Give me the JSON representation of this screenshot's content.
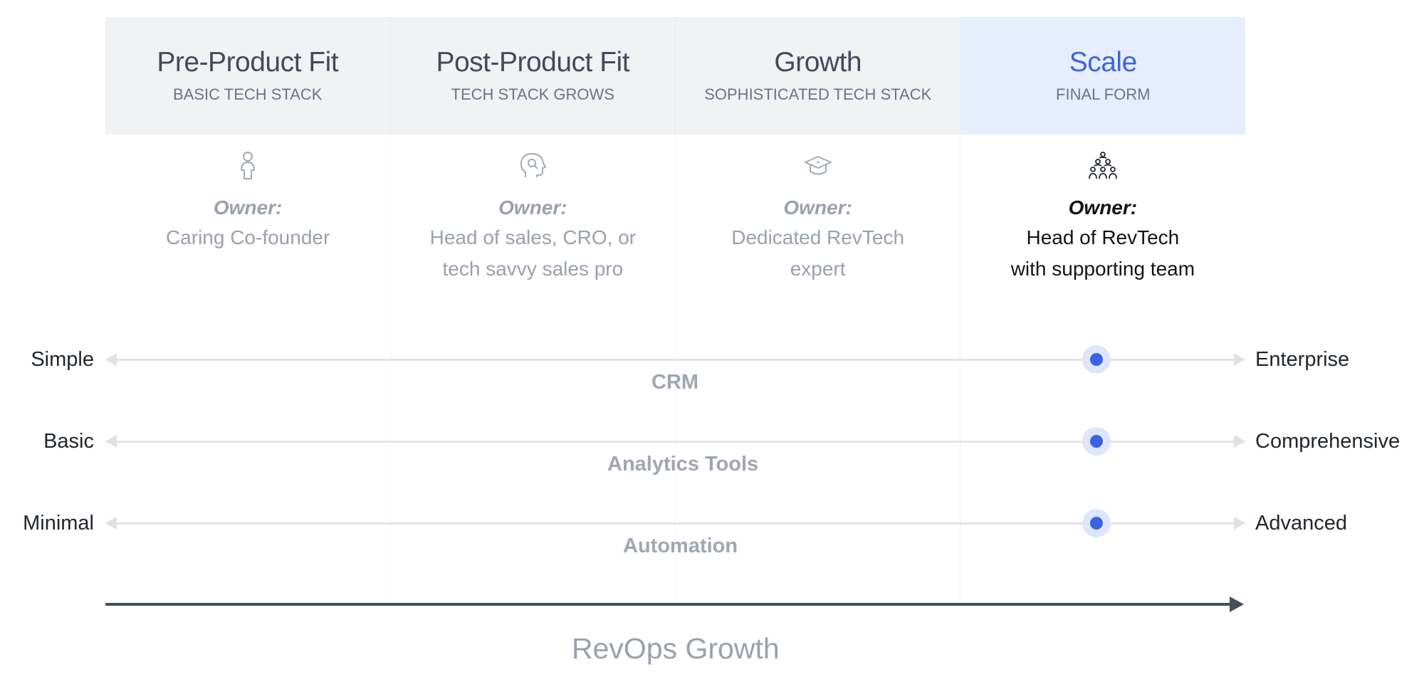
{
  "stages": [
    {
      "title": "Pre-Product Fit",
      "subtitle": "BASIC TECH STACK"
    },
    {
      "title": "Post-Product Fit",
      "subtitle": "TECH STACK GROWS"
    },
    {
      "title": "Growth",
      "subtitle": "SOPHISTICATED TECH STACK"
    },
    {
      "title": "Scale",
      "subtitle": "FINAL FORM"
    }
  ],
  "owners": [
    {
      "icon": "person-icon",
      "label": "Owner:",
      "line1": "Caring Co-founder",
      "line2": ""
    },
    {
      "icon": "head-gear-icon",
      "label": "Owner:",
      "line1": "Head of sales, CRO, or",
      "line2": "tech savvy sales pro"
    },
    {
      "icon": "graduation-cap-icon",
      "label": "Owner:",
      "line1": "Dedicated RevTech",
      "line2": "expert"
    },
    {
      "icon": "team-icon",
      "label": "Owner:",
      "line1": "Head of RevTech",
      "line2": "with supporting team"
    }
  ],
  "scales": [
    {
      "left": "Simple",
      "right": "Enterprise",
      "caption": "CRM",
      "position": 0.87
    },
    {
      "left": "Basic",
      "right": "Comprehensive",
      "caption": "Analytics Tools",
      "position": 0.87
    },
    {
      "left": "Minimal",
      "right": "Advanced",
      "caption": "Automation",
      "position": 0.87
    }
  ],
  "axis": {
    "label": "RevOps Growth"
  },
  "colors": {
    "accent": "#3b63e0",
    "active_bg": "#e6eefe",
    "header_bg": "#f1f2f4",
    "axis": "#464d5b"
  }
}
